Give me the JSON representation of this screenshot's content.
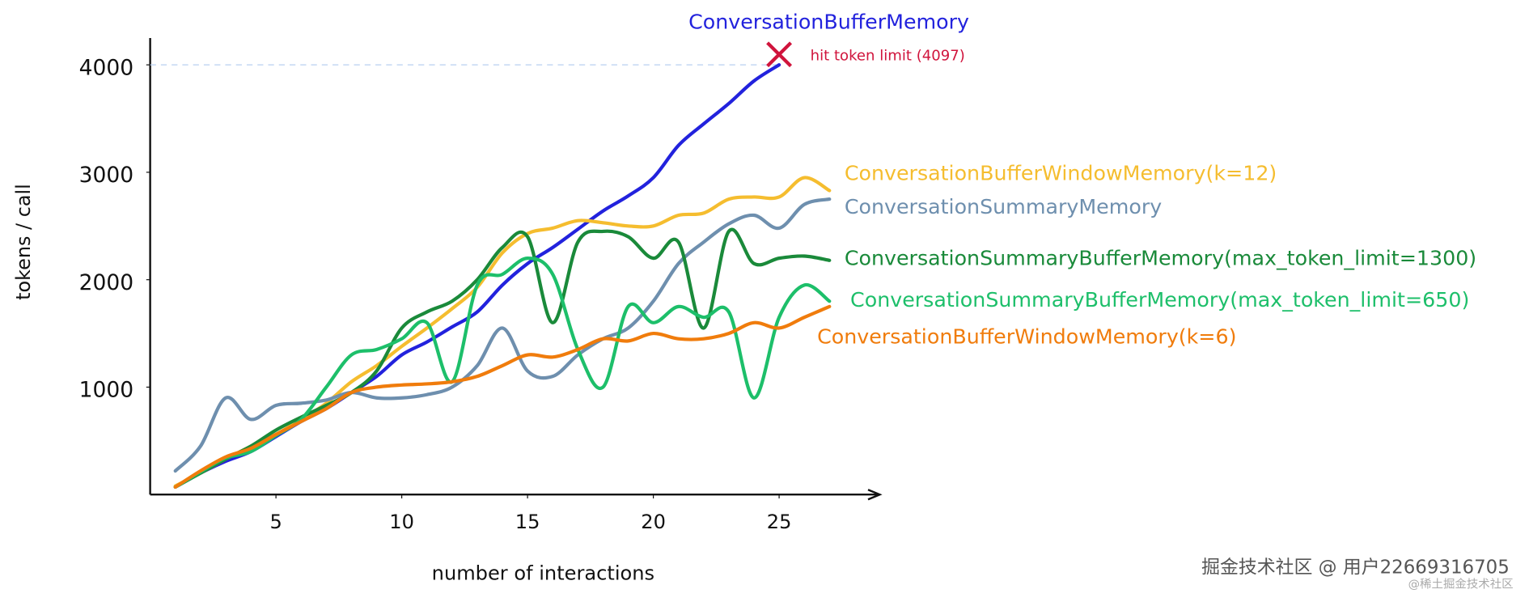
{
  "chart_data": {
    "type": "line",
    "x_label": "number of interactions",
    "y_label": "tokens / call",
    "x": [
      1,
      2,
      3,
      4,
      5,
      6,
      7,
      8,
      9,
      10,
      11,
      12,
      13,
      14,
      15,
      16,
      17,
      18,
      19,
      20,
      21,
      22,
      23,
      24,
      25,
      26,
      27
    ],
    "series": [
      {
        "name": "ConversationBufferMemory",
        "color": "#2222dd",
        "values": [
          70,
          200,
          310,
          400,
          540,
          680,
          800,
          950,
          1100,
          1300,
          1420,
          1560,
          1700,
          1950,
          2150,
          2300,
          2470,
          2640,
          2780,
          2950,
          3250,
          3450,
          3640,
          3850,
          4000,
          null,
          null
        ]
      },
      {
        "name": "ConversationBufferWindowMemory(k=12)",
        "color": "#f5bd2f",
        "values": [
          80,
          200,
          330,
          450,
          560,
          700,
          850,
          1050,
          1200,
          1380,
          1550,
          1730,
          1930,
          2250,
          2430,
          2480,
          2550,
          2530,
          2500,
          2500,
          2600,
          2620,
          2750,
          2770,
          2770,
          2950,
          2830
        ]
      },
      {
        "name": "ConversationSummaryMemory",
        "color": "#6e8fae",
        "values": [
          220,
          450,
          900,
          700,
          830,
          850,
          880,
          950,
          900,
          900,
          930,
          1000,
          1200,
          1550,
          1150,
          1100,
          1300,
          1450,
          1550,
          1800,
          2150,
          2350,
          2520,
          2600,
          2480,
          2700,
          2750
        ]
      },
      {
        "name": "ConversationSummaryBufferMemory(max_token_limit=1300)",
        "color": "#1a8a3a",
        "values": [
          70,
          200,
          330,
          450,
          600,
          720,
          830,
          950,
          1150,
          1550,
          1700,
          1800,
          2000,
          2300,
          2400,
          1600,
          2350,
          2450,
          2400,
          2200,
          2350,
          1550,
          2450,
          2150,
          2200,
          2220,
          2180
        ]
      },
      {
        "name": "ConversationSummaryBufferMemory(max_token_limit=650)",
        "color": "#1dbf6a",
        "values": [
          70,
          210,
          340,
          400,
          550,
          700,
          1000,
          1300,
          1350,
          1450,
          1600,
          1050,
          1950,
          2050,
          2200,
          2050,
          1350,
          1000,
          1750,
          1600,
          1750,
          1650,
          1700,
          900,
          1650,
          1950,
          1800
        ]
      },
      {
        "name": "ConversationBufferWindowMemory(k=6)",
        "color": "#f07c0c",
        "values": [
          70,
          220,
          350,
          430,
          560,
          680,
          800,
          950,
          1000,
          1020,
          1030,
          1050,
          1100,
          1200,
          1300,
          1280,
          1350,
          1450,
          1430,
          1500,
          1450,
          1450,
          1500,
          1600,
          1550,
          1650,
          1750
        ]
      }
    ],
    "annotation": {
      "text": "hit token limit (4097)",
      "x": 25,
      "y": 4097,
      "color": "#d0143c"
    },
    "hline": 4000,
    "xlim": [
      0,
      29
    ],
    "ylim": [
      0,
      4250
    ],
    "xticks": [
      5,
      10,
      15,
      20,
      25
    ],
    "yticks": [
      1000,
      2000,
      3000,
      4000
    ]
  },
  "watermark": {
    "main": "掘金技术社区 @ 用户22669316705",
    "sub": "@稀土掘金技术社区"
  }
}
